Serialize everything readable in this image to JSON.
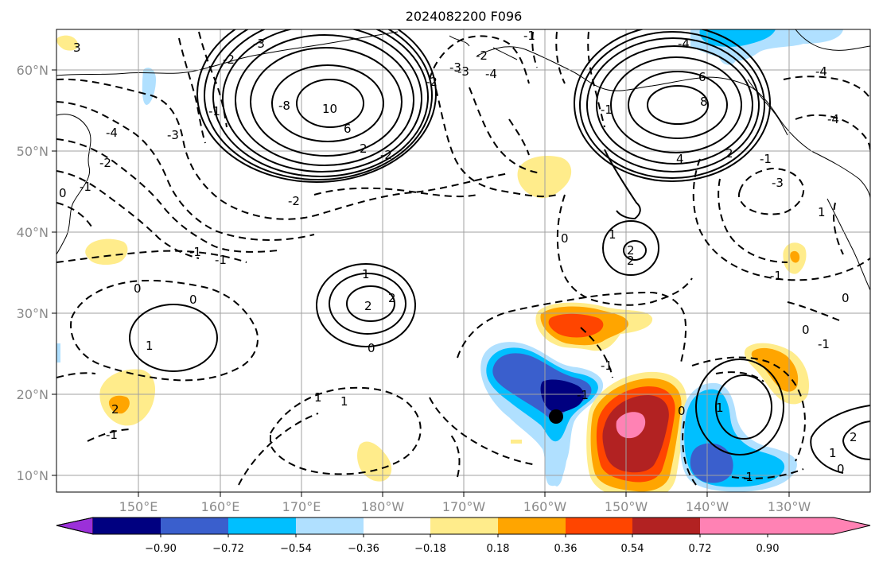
{
  "title": "2024082200 F096",
  "lon_labels": [
    "150°E",
    "160°E",
    "170°E",
    "180°W",
    "170°W",
    "160°W",
    "150°W",
    "140°W",
    "130°W"
  ],
  "lat_labels": [
    "60°N",
    "50°N",
    "40°N",
    "30°N",
    "20°N",
    "10°N"
  ],
  "colorbar": {
    "ticks": [
      "−0.90",
      "−0.72",
      "−0.54",
      "−0.36",
      "−0.18",
      "0.18",
      "0.36",
      "0.54",
      "0.72",
      "0.90"
    ],
    "colors": [
      "#9b30d9",
      "#000080",
      "#3a5fcd",
      "#00bfff",
      "#b0e0ff",
      "#ffffff",
      "#ffec8b",
      "#ffa500",
      "#ff4500",
      "#b22222",
      "#ff82b4"
    ]
  },
  "contour_labels": [
    "-8",
    "10",
    "6",
    "2",
    "-4",
    "-3",
    "-2",
    "-1",
    "0",
    "1",
    "2",
    "-3",
    "-2",
    "1",
    "2",
    "-2",
    "-1",
    "0",
    "-1",
    "2",
    "1",
    "0",
    "-1",
    "0",
    "1",
    "-2",
    "-3",
    "-4",
    "-2",
    "-1",
    "-1",
    "-4",
    "8",
    "6",
    "4",
    "2",
    "-4",
    "-3",
    "2",
    "-1",
    "1",
    "2",
    "0",
    "-1",
    "-1",
    "0",
    "1",
    "2",
    "-1",
    "1",
    "-1",
    "0",
    "3",
    "-3",
    "-2",
    "-1",
    "-4",
    "-1",
    "0",
    "1",
    "0"
  ],
  "marker": {
    "type": "dot",
    "color": "#000000"
  }
}
